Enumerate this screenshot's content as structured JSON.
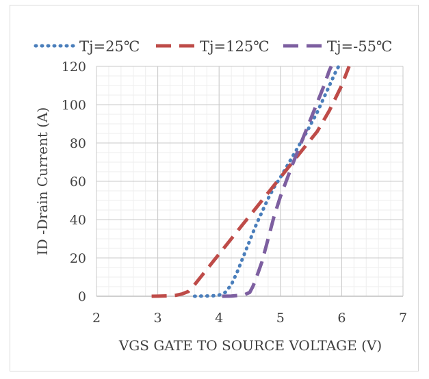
{
  "chart_data": {
    "type": "line",
    "xlabel": "VGS GATE TO SOURCE VOLTAGE (V)",
    "ylabel": "ID -Drain Current (A)",
    "xlim": [
      2,
      7
    ],
    "ylim": [
      0,
      120
    ],
    "x_ticks": [
      "2",
      "3",
      "4",
      "5",
      "6",
      "7"
    ],
    "y_ticks": [
      "0",
      "20",
      "40",
      "60",
      "80",
      "100",
      "120"
    ],
    "grid": true,
    "legend_position": "top",
    "series": [
      {
        "name": "Tj=25℃",
        "color": "#4a7ebb",
        "style": "dotted",
        "points": [
          [
            3.6,
            0
          ],
          [
            3.9,
            0.2
          ],
          [
            4.0,
            0.6
          ],
          [
            4.1,
            2
          ],
          [
            4.2,
            6
          ],
          [
            4.3,
            13
          ],
          [
            4.4,
            21
          ],
          [
            4.5,
            29
          ],
          [
            4.6,
            37
          ],
          [
            4.7,
            44
          ],
          [
            4.8,
            51
          ],
          [
            4.9,
            57
          ],
          [
            5.0,
            62
          ],
          [
            5.2,
            73
          ],
          [
            5.4,
            84
          ],
          [
            5.6,
            96
          ],
          [
            5.8,
            110
          ],
          [
            5.9,
            117
          ],
          [
            5.95,
            120
          ]
        ]
      },
      {
        "name": "Tj=125℃",
        "color": "#be4b48",
        "style": "dashed",
        "points": [
          [
            2.9,
            0
          ],
          [
            3.0,
            0.05
          ],
          [
            3.2,
            0.2
          ],
          [
            3.3,
            0.5
          ],
          [
            3.4,
            1.2
          ],
          [
            3.5,
            2.5
          ],
          [
            3.6,
            6
          ],
          [
            3.7,
            10
          ],
          [
            3.8,
            14
          ],
          [
            3.9,
            18
          ],
          [
            4.0,
            22
          ],
          [
            4.2,
            30
          ],
          [
            4.4,
            38
          ],
          [
            4.6,
            46
          ],
          [
            4.8,
            54
          ],
          [
            5.0,
            62
          ],
          [
            5.2,
            70
          ],
          [
            5.4,
            78
          ],
          [
            5.6,
            86
          ],
          [
            5.8,
            97
          ],
          [
            6.0,
            110
          ],
          [
            6.12,
            120
          ]
        ]
      },
      {
        "name": "Tj=-55℃",
        "color": "#7d5fa0",
        "style": "dashed",
        "points": [
          [
            4.05,
            0
          ],
          [
            4.2,
            0.1
          ],
          [
            4.4,
            0.6
          ],
          [
            4.5,
            2
          ],
          [
            4.55,
            5
          ],
          [
            4.6,
            9
          ],
          [
            4.7,
            18
          ],
          [
            4.8,
            30
          ],
          [
            4.9,
            42
          ],
          [
            5.0,
            52
          ],
          [
            5.2,
            69
          ],
          [
            5.4,
            85
          ],
          [
            5.6,
            101
          ],
          [
            5.7,
            109
          ],
          [
            5.8,
            118
          ],
          [
            5.83,
            120
          ]
        ]
      }
    ]
  }
}
